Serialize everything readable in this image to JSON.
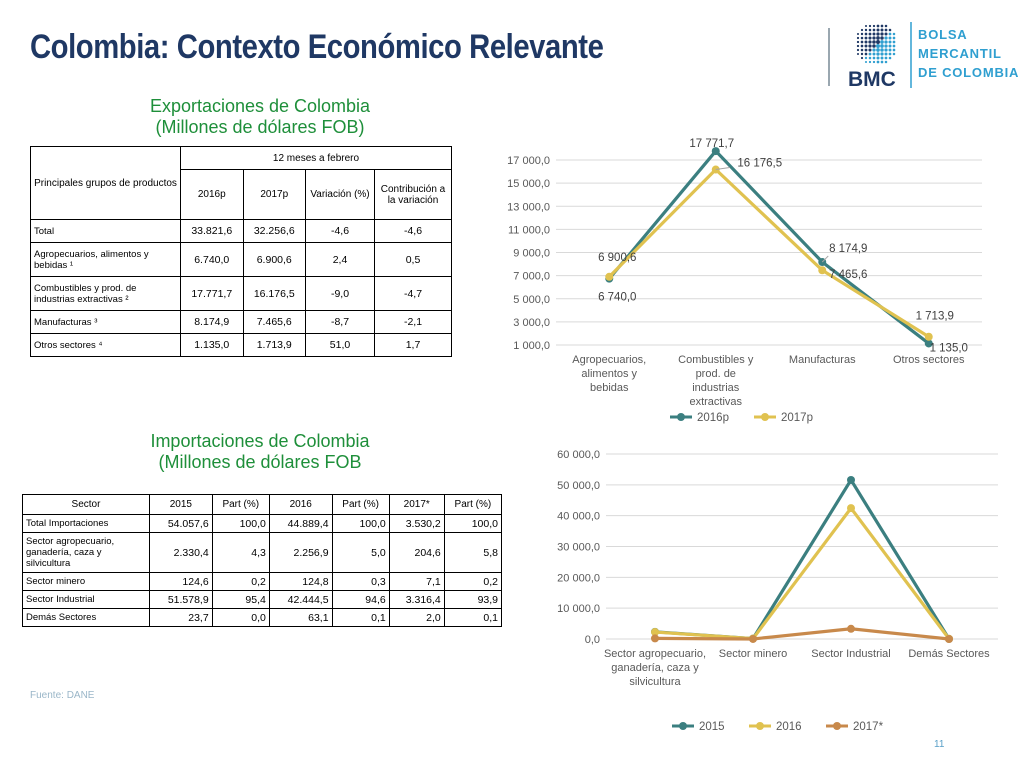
{
  "page": {
    "title": "Colombia: Contexto Económico Relevante",
    "logo_text": [
      "BOLSA",
      "MERCANTIL",
      "DE COLOMBIA"
    ],
    "logo_abbr": "BMC",
    "source": "Fuente: DANE",
    "page_number": "11"
  },
  "exports": {
    "title_line1": "Exportaciones de Colombia",
    "title_line2": "(Millones de dólares FOB)",
    "table": {
      "col_group_header": "Principales grupos de productos",
      "period_header": "12 meses a febrero",
      "headers": [
        "2016p",
        "2017p",
        "Variación (%)",
        "Contribución a la variación"
      ],
      "rows": [
        {
          "label": "Total",
          "values": [
            "33.821,6",
            "32.256,6",
            "-4,6",
            "-4,6"
          ]
        },
        {
          "label": "Agropecuarios, alimentos y bebidas ¹",
          "values": [
            "6.740,0",
            "6.900,6",
            "2,4",
            "0,5"
          ]
        },
        {
          "label": "Combustibles y prod. de industrias extractivas ²",
          "values": [
            "17.771,7",
            "16.176,5",
            "-9,0",
            "-4,7"
          ]
        },
        {
          "label": "Manufacturas ³",
          "values": [
            "8.174,9",
            "7.465,6",
            "-8,7",
            "-2,1"
          ]
        },
        {
          "label": "Otros sectores ⁴",
          "values": [
            "1.135,0",
            "1.713,9",
            "51,0",
            "1,7"
          ]
        }
      ]
    }
  },
  "imports": {
    "title_line1": "Importaciones de Colombia",
    "title_line2": "(Millones de dólares FOB",
    "table": {
      "headers": [
        "Sector",
        "2015",
        "Part (%)",
        "2016",
        "Part (%)",
        "2017*",
        "Part (%)"
      ],
      "rows": [
        {
          "label": "Total Importaciones",
          "values": [
            "54.057,6",
            "100,0",
            "44.889,4",
            "100,0",
            "3.530,2",
            "100,0"
          ]
        },
        {
          "label": "Sector agropecuario, ganadería, caza y silvicultura",
          "values": [
            "2.330,4",
            "4,3",
            "2.256,9",
            "5,0",
            "204,6",
            "5,8"
          ]
        },
        {
          "label": "Sector minero",
          "values": [
            "124,6",
            "0,2",
            "124,8",
            "0,3",
            "7,1",
            "0,2"
          ]
        },
        {
          "label": "Sector Industrial",
          "values": [
            "51.578,9",
            "95,4",
            "42.444,5",
            "94,6",
            "3.316,4",
            "93,9"
          ]
        },
        {
          "label": "Demás Sectores",
          "values": [
            "23,7",
            "0,0",
            "63,1",
            "0,1",
            "2,0",
            "0,1"
          ]
        }
      ]
    }
  },
  "chart_data": [
    {
      "type": "line",
      "categories": [
        "Agropecuarios, alimentos y bebidas",
        "Combustibles y prod. de industrias extractivas",
        "Manufacturas",
        "Otros sectores"
      ],
      "series": [
        {
          "name": "2016p",
          "values": [
            6740.0,
            17771.7,
            8174.9,
            1135.0
          ],
          "color": "#3b7f80",
          "labels": [
            "6 740,0",
            "17 771,7",
            "8 174,9",
            "1 135,0"
          ]
        },
        {
          "name": "2017p",
          "values": [
            6900.6,
            16176.5,
            7465.6,
            1713.9
          ],
          "color": "#e0c250",
          "labels": [
            "6 900,6",
            "16 176,5",
            "7 465,6",
            "1 713,9"
          ]
        }
      ],
      "yticks": [
        "1 000,0",
        "3 000,0",
        "5 000,0",
        "7 000,0",
        "9 000,0",
        "11 000,0",
        "13 000,0",
        "15 000,0",
        "17 000,0"
      ],
      "ylim": [
        1000,
        17000
      ],
      "grid": true,
      "legend": "bottom"
    },
    {
      "type": "line",
      "categories": [
        "Sector agropecuario, ganadería, caza y silvicultura",
        "Sector minero",
        "Sector Industrial",
        "Demás Sectores"
      ],
      "series": [
        {
          "name": "2015",
          "values": [
            2330.4,
            124.6,
            51578.9,
            23.7
          ],
          "color": "#3b7f80"
        },
        {
          "name": "2016",
          "values": [
            2256.9,
            124.8,
            42444.5,
            63.1
          ],
          "color": "#e0c250"
        },
        {
          "name": "2017*",
          "values": [
            204.6,
            7.1,
            3316.4,
            2.0
          ],
          "color": "#c8894b"
        }
      ],
      "yticks": [
        "0,0",
        "10 000,0",
        "20 000,0",
        "30 000,0",
        "40 000,0",
        "50 000,0",
        "60 000,0"
      ],
      "ylim": [
        0,
        60000
      ],
      "grid": true,
      "legend": "bottom"
    }
  ]
}
